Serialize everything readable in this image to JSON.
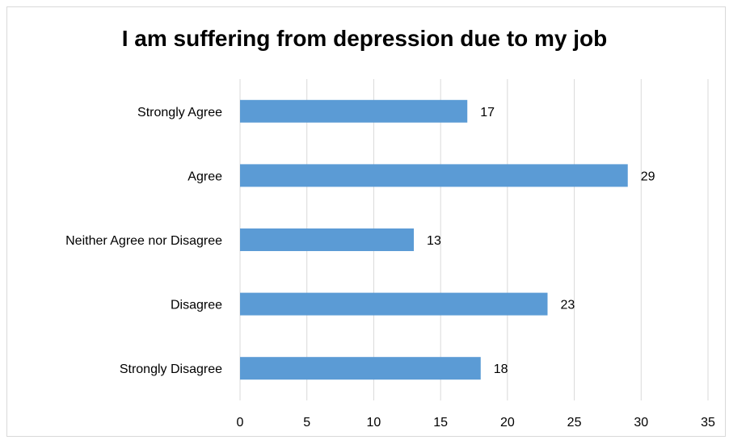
{
  "chart_data": {
    "type": "bar",
    "orientation": "horizontal",
    "title": "I am suffering from depression due to my job",
    "categories": [
      "Strongly Agree",
      "Agree",
      "Neither Agree nor Disagree",
      "Disagree",
      "Strongly Disagree"
    ],
    "values": [
      17,
      29,
      13,
      23,
      18
    ],
    "xlim": [
      0,
      35
    ],
    "x_ticks": [
      "0",
      "5",
      "10",
      "15",
      "20",
      "25",
      "30",
      "35"
    ],
    "grid": "vertical",
    "legend": "none",
    "bar_color": "#5b9bd5",
    "grid_color": "#d9d9d9"
  }
}
